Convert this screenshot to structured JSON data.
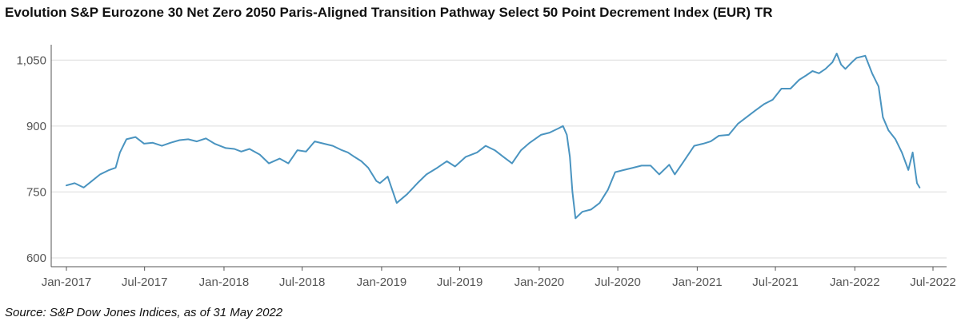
{
  "title": "Evolution S&P Eurozone 30 Net Zero 2050 Paris-Aligned Transition Pathway Select 50 Point Decrement Index (EUR) TR",
  "source": "Source: S&P Dow Jones Indices, as of 31 May 2022",
  "chart_data": {
    "type": "line",
    "title": "Evolution S&P Eurozone 30 Net Zero 2050 Paris-Aligned Transition Pathway Select 50 Point Decrement Index (EUR) TR",
    "xlabel": "",
    "ylabel": "",
    "xlim": [
      "2017-01-01",
      "2022-07-01"
    ],
    "ylim": [
      580,
      1085
    ],
    "yticks": [
      600,
      750,
      900,
      1050
    ],
    "ytick_labels": [
      "600",
      "750",
      "900",
      "1,050"
    ],
    "xticks": [
      "2017-01-01",
      "2017-07-01",
      "2018-01-01",
      "2018-07-01",
      "2019-01-01",
      "2019-07-01",
      "2020-01-01",
      "2020-07-01",
      "2021-01-01",
      "2021-07-01",
      "2022-01-01",
      "2022-07-01"
    ],
    "xtick_labels": [
      "Jan-2017",
      "Jul-2017",
      "Jan-2018",
      "Jul-2018",
      "Jan-2019",
      "Jul-2019",
      "Jan-2020",
      "Jul-2020",
      "Jan-2021",
      "Jul-2021",
      "Jan-2022",
      "Jul-2022"
    ],
    "grid": "horizontal",
    "line_color": "#4a94c0",
    "series": [
      {
        "x": [
          "2017-01-01",
          "2017-01-20",
          "2017-02-10",
          "2017-03-01",
          "2017-03-20",
          "2017-04-10",
          "2017-04-25",
          "2017-05-05",
          "2017-05-20",
          "2017-06-10",
          "2017-06-30",
          "2017-07-20",
          "2017-08-10",
          "2017-08-30",
          "2017-09-20",
          "2017-10-10",
          "2017-10-30",
          "2017-11-20",
          "2017-12-10",
          "2018-01-05",
          "2018-01-25",
          "2018-02-10",
          "2018-03-01",
          "2018-03-25",
          "2018-04-15",
          "2018-05-10",
          "2018-05-30",
          "2018-06-20",
          "2018-07-10",
          "2018-07-30",
          "2018-08-20",
          "2018-09-10",
          "2018-10-01",
          "2018-10-15",
          "2018-10-30",
          "2018-11-15",
          "2018-12-01",
          "2018-12-20",
          "2018-12-28",
          "2019-01-15",
          "2019-02-05",
          "2019-03-01",
          "2019-03-25",
          "2019-04-15",
          "2019-05-10",
          "2019-06-01",
          "2019-06-20",
          "2019-07-15",
          "2019-08-10",
          "2019-08-30",
          "2019-09-20",
          "2019-10-10",
          "2019-10-30",
          "2019-11-20",
          "2019-12-10",
          "2020-01-05",
          "2020-01-25",
          "2020-02-15",
          "2020-02-25",
          "2020-03-05",
          "2020-03-12",
          "2020-03-18",
          "2020-03-25",
          "2020-04-10",
          "2020-04-30",
          "2020-05-20",
          "2020-06-08",
          "2020-06-25",
          "2020-07-15",
          "2020-08-05",
          "2020-08-25",
          "2020-09-15",
          "2020-10-05",
          "2020-10-28",
          "2020-11-10",
          "2020-12-01",
          "2020-12-25",
          "2021-01-15",
          "2021-02-01",
          "2021-02-20",
          "2021-03-15",
          "2021-04-05",
          "2021-04-25",
          "2021-05-15",
          "2021-06-05",
          "2021-06-25",
          "2021-07-15",
          "2021-08-05",
          "2021-08-25",
          "2021-09-10",
          "2021-09-25",
          "2021-10-10",
          "2021-10-25",
          "2021-11-10",
          "2021-11-20",
          "2021-11-30",
          "2021-12-10",
          "2021-12-25",
          "2022-01-05",
          "2022-01-25",
          "2022-02-10",
          "2022-02-25",
          "2022-03-07",
          "2022-03-20",
          "2022-04-05",
          "2022-04-20",
          "2022-05-05",
          "2022-05-15",
          "2022-05-25",
          "2022-05-31"
        ],
        "y": [
          765,
          770,
          760,
          775,
          790,
          800,
          805,
          840,
          870,
          875,
          860,
          862,
          855,
          862,
          868,
          870,
          865,
          872,
          860,
          850,
          848,
          842,
          848,
          835,
          815,
          826,
          815,
          845,
          842,
          865,
          860,
          855,
          845,
          840,
          830,
          820,
          805,
          775,
          770,
          785,
          725,
          745,
          770,
          790,
          805,
          820,
          808,
          830,
          840,
          855,
          845,
          830,
          815,
          845,
          862,
          880,
          885,
          895,
          900,
          880,
          830,
          750,
          690,
          705,
          710,
          725,
          755,
          795,
          800,
          805,
          810,
          810,
          790,
          812,
          790,
          820,
          855,
          860,
          865,
          878,
          880,
          905,
          920,
          935,
          950,
          960,
          985,
          985,
          1005,
          1015,
          1025,
          1020,
          1030,
          1045,
          1065,
          1040,
          1030,
          1045,
          1055,
          1060,
          1020,
          990,
          920,
          890,
          870,
          840,
          800,
          840,
          770,
          760
        ]
      }
    ]
  }
}
